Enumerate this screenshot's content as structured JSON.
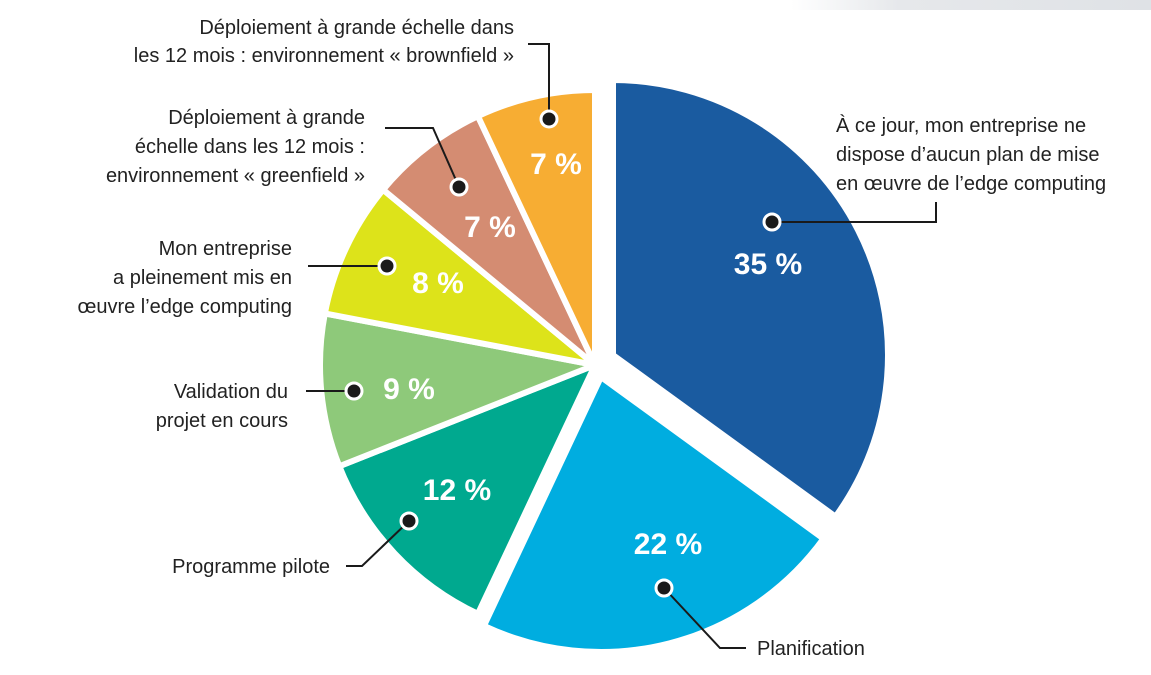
{
  "chart_data": {
    "type": "pie",
    "slices": [
      {
        "label_lines": [
          "À ce jour, mon entreprise ne",
          "dispose d’aucun plan de mise",
          "en œuvre de l’edge computing"
        ],
        "value": 35,
        "value_label": "35 %",
        "color": "#1a5ba0"
      },
      {
        "label_lines": [
          "Planification"
        ],
        "value": 22,
        "value_label": "22 %",
        "color": "#00ade0"
      },
      {
        "label_lines": [
          "Programme pilote"
        ],
        "value": 12,
        "value_label": "12 %",
        "color": "#00a98f"
      },
      {
        "label_lines": [
          "Validation du",
          "projet en cours"
        ],
        "value": 9,
        "value_label": "9 %",
        "color": "#8ec97a"
      },
      {
        "label_lines": [
          "Mon entreprise",
          "a pleinement mis en",
          "œuvre l’edge computing"
        ],
        "value": 8,
        "value_label": "8 %",
        "color": "#dde31a"
      },
      {
        "label_lines": [
          "Déploiement à grande",
          "échelle dans les 12 mois :",
          "environnement « greenfield »"
        ],
        "value": 7,
        "value_label": "7 %",
        "color": "#d48c72"
      },
      {
        "label_lines": [
          "Déploiement à grande échelle dans",
          "les 12 mois : environnement « brownfield »"
        ],
        "value": 7,
        "value_label": "7 %",
        "color": "#f7ad33"
      }
    ],
    "start": "12 o'clock",
    "direction": "clockwise",
    "exploded": [
      "35 %",
      "22 %"
    ],
    "legend": "none",
    "title": ""
  }
}
